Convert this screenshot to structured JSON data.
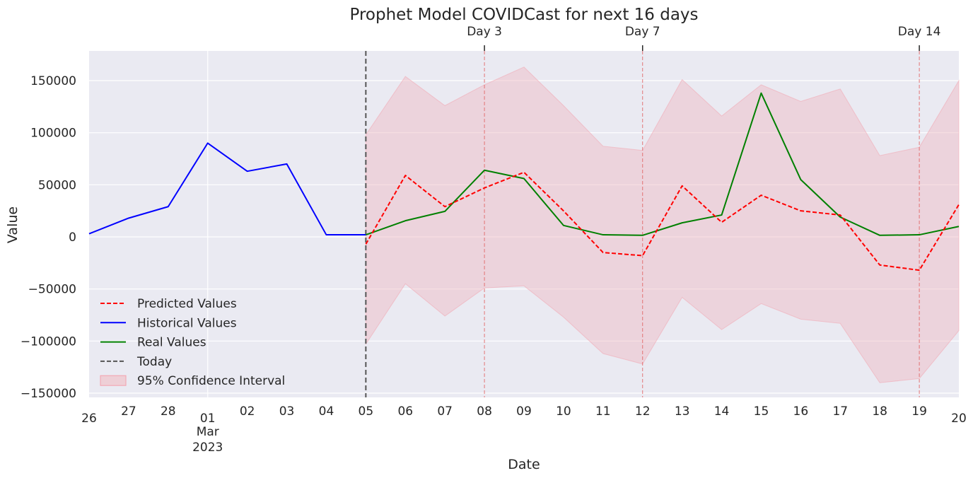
{
  "chart_data": {
    "type": "line",
    "title": "Prophet Model COVIDCast for next 16 days",
    "xlabel": "Date",
    "ylabel": "Value",
    "x_ticks": [
      "26",
      "27",
      "28",
      "01",
      "02",
      "03",
      "04",
      "05",
      "06",
      "07",
      "08",
      "09",
      "10",
      "11",
      "12",
      "13",
      "14",
      "15",
      "16",
      "17",
      "18",
      "19",
      "20"
    ],
    "x_tick_extra": {
      "month": "Mar",
      "year": "2023"
    },
    "y_ticks": [
      150000,
      100000,
      50000,
      0,
      -50000,
      -100000,
      -150000
    ],
    "y_tick_labels": [
      "150000",
      "100000",
      "50000",
      "0",
      "−50000",
      "−100000",
      "−150000"
    ],
    "ylim": [
      -150000,
      175000
    ],
    "grid": true,
    "legend_position": "lower-left",
    "today_index": 7,
    "day_markers": [
      {
        "label": "Day 3",
        "index": 10
      },
      {
        "label": "Day 7",
        "index": 14
      },
      {
        "label": "Day 14",
        "index": 21
      }
    ],
    "series": [
      {
        "name": "Predicted Values",
        "color": "#ff0000",
        "style": "dashed",
        "start_index": 7,
        "values": [
          -7000,
          59000,
          29000,
          47000,
          62000,
          25000,
          -15000,
          -18000,
          49000,
          14000,
          40000,
          25000,
          21000,
          -27000,
          -32000,
          31000
        ]
      },
      {
        "name": "Historical Values",
        "color": "#0000ff",
        "style": "solid",
        "start_index": 0,
        "values": [
          3000,
          18000,
          29000,
          90000,
          63000,
          70000,
          2000,
          2000
        ]
      },
      {
        "name": "Real Values",
        "color": "#008000",
        "style": "solid",
        "start_index": 7,
        "values": [
          2000,
          15500,
          24500,
          64000,
          56000,
          11000,
          2000,
          1500,
          13500,
          21000,
          138000,
          55000,
          19000,
          1500,
          2000,
          10000
        ]
      },
      {
        "name": "Today",
        "color": "#555555",
        "style": "dashed"
      },
      {
        "name": "95% Confidence Interval",
        "color": "#f0b8c0",
        "style": "band",
        "start_index": 7,
        "upper": [
          98000,
          154000,
          126000,
          146000,
          163000,
          126000,
          87000,
          83000,
          151000,
          116000,
          146000,
          130000,
          142000,
          78000,
          86000,
          150000
        ],
        "lower": [
          -103000,
          -45000,
          -76000,
          -49000,
          -47000,
          -77000,
          -112000,
          -122000,
          -58000,
          -89000,
          -64000,
          -79000,
          -83000,
          -140000,
          -136000,
          -90000
        ]
      }
    ]
  }
}
